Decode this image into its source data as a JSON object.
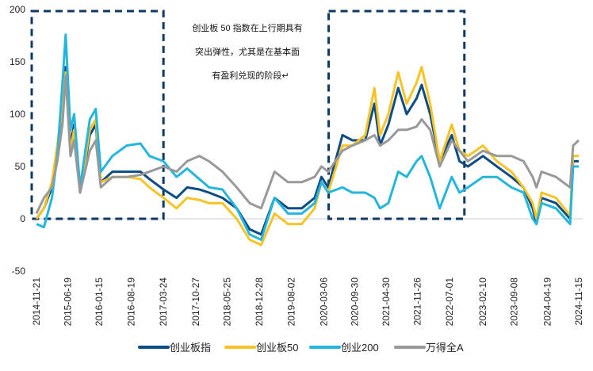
{
  "chart_data": {
    "type": "line",
    "title": "",
    "xlabel": "",
    "ylabel": "",
    "ylim": [
      -50,
      200
    ],
    "yticks": [
      -50,
      0,
      50,
      100,
      150,
      200
    ],
    "xticks": [
      "2014-11-21",
      "2015-06-19",
      "2016-01-15",
      "2016-08-19",
      "2017-03-24",
      "2017-10-27",
      "2018-05-25",
      "2018-12-28",
      "2019-08-02",
      "2020-03-06",
      "2020-09-30",
      "2021-04-30",
      "2021-11-26",
      "2022-07-01",
      "2023-02-10",
      "2023-09-08",
      "2024-04-19",
      "2024-11-15"
    ],
    "grid": false,
    "legend_position": "bottom",
    "annotation": {
      "lines": [
        "创业板 50 指数在上行期具有",
        "突出弹性，尤其是在基本面",
        "有盈利兑现的阶段↵"
      ]
    },
    "highlight_boxes": [
      {
        "from": "2014-11-21",
        "to": "2017-03-24",
        "style": "dashed",
        "color": "#0f3a63"
      },
      {
        "from": "2020-05-10",
        "to": "2022-10-08",
        "style": "dashed",
        "color": "#0f3a63"
      }
    ],
    "x": [
      "2014-11-21",
      "2015-01-10",
      "2015-03-05",
      "2015-04-10",
      "2015-05-15",
      "2015-06-05",
      "2015-07-08",
      "2015-08-01",
      "2015-09-10",
      "2015-11-15",
      "2015-12-25",
      "2016-01-28",
      "2016-04-15",
      "2016-07-20",
      "2016-10-20",
      "2016-12-20",
      "2017-03-24",
      "2017-06-20",
      "2017-08-30",
      "2017-11-20",
      "2018-01-25",
      "2018-04-25",
      "2018-07-30",
      "2018-10-25",
      "2019-01-10",
      "2019-04-10",
      "2019-07-10",
      "2019-10-10",
      "2020-01-05",
      "2020-02-20",
      "2020-04-05",
      "2020-07-10",
      "2020-09-15",
      "2020-12-10",
      "2021-02-10",
      "2021-03-20",
      "2021-05-15",
      "2021-07-20",
      "2021-09-15",
      "2021-11-20",
      "2021-12-25",
      "2022-02-20",
      "2022-04-25",
      "2022-07-15",
      "2022-09-05",
      "2022-11-01",
      "2023-02-10",
      "2023-05-15",
      "2023-08-20",
      "2023-11-10",
      "2024-01-10",
      "2024-02-05",
      "2024-03-10",
      "2024-06-15",
      "2024-09-18",
      "2024-10-08",
      "2024-11-15"
    ],
    "series": [
      {
        "name": "创业板指",
        "color": "#0d4c85",
        "values": [
          0,
          10,
          30,
          65,
          110,
          145,
          70,
          90,
          25,
          80,
          90,
          35,
          45,
          45,
          45,
          38,
          28,
          20,
          30,
          28,
          25,
          20,
          10,
          -10,
          -15,
          20,
          10,
          10,
          20,
          40,
          30,
          80,
          75,
          75,
          110,
          70,
          90,
          125,
          100,
          115,
          128,
          100,
          55,
          80,
          55,
          50,
          60,
          50,
          40,
          30,
          10,
          -5,
          20,
          15,
          0,
          55,
          55
        ]
      },
      {
        "name": "创业板50",
        "color": "#f7c325",
        "values": [
          0,
          10,
          35,
          70,
          110,
          140,
          65,
          85,
          25,
          85,
          95,
          35,
          40,
          40,
          38,
          30,
          20,
          10,
          20,
          18,
          15,
          15,
          0,
          -20,
          -25,
          5,
          -5,
          -5,
          10,
          35,
          25,
          70,
          70,
          80,
          125,
          80,
          100,
          140,
          110,
          130,
          145,
          110,
          55,
          90,
          65,
          60,
          70,
          55,
          45,
          30,
          15,
          0,
          25,
          20,
          3,
          60,
          60
        ]
      },
      {
        "name": "创业200",
        "color": "#25b6de",
        "values": [
          -5,
          -8,
          20,
          60,
          130,
          176,
          85,
          100,
          30,
          95,
          105,
          45,
          60,
          70,
          72,
          60,
          55,
          40,
          48,
          38,
          30,
          28,
          10,
          -15,
          -20,
          20,
          5,
          5,
          15,
          35,
          25,
          30,
          25,
          25,
          20,
          10,
          15,
          45,
          40,
          55,
          60,
          40,
          10,
          40,
          25,
          30,
          40,
          40,
          30,
          25,
          0,
          -5,
          15,
          10,
          -5,
          50,
          50
        ]
      },
      {
        "name": "万得全A",
        "color": "#999999",
        "values": [
          5,
          20,
          30,
          55,
          90,
          137,
          60,
          75,
          25,
          65,
          75,
          30,
          40,
          40,
          42,
          45,
          50,
          45,
          55,
          60,
          55,
          45,
          30,
          15,
          10,
          45,
          35,
          35,
          40,
          50,
          45,
          65,
          70,
          75,
          80,
          70,
          75,
          85,
          85,
          88,
          95,
          85,
          50,
          75,
          65,
          55,
          65,
          60,
          60,
          55,
          40,
          30,
          45,
          40,
          30,
          70,
          75
        ]
      }
    ]
  }
}
